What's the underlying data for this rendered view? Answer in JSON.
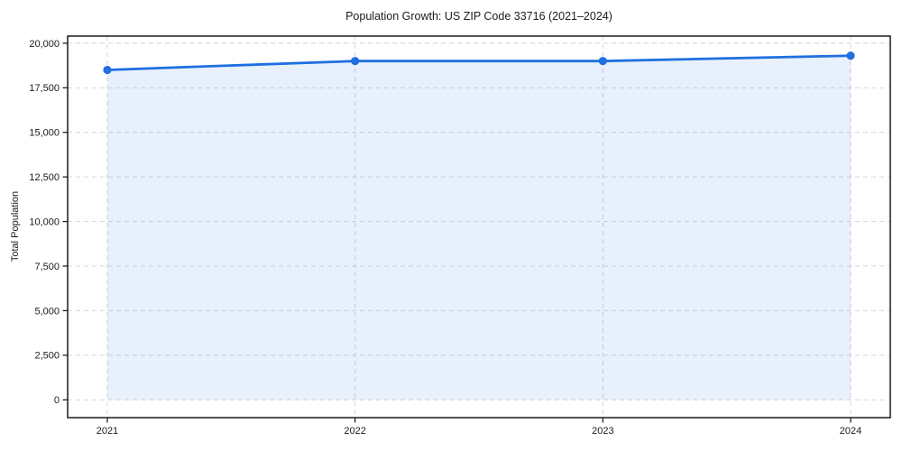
{
  "figure": {
    "background": "#ffffff"
  },
  "chart_data": {
    "type": "line",
    "title": "Population Growth: US ZIP Code 33716 (2021–2024)",
    "xlabel": "",
    "ylabel": "Total Population",
    "x": [
      2021,
      2022,
      2023,
      2024
    ],
    "series": [
      {
        "name": "Total Population",
        "values": [
          18500,
          19000,
          19000,
          19300
        ]
      }
    ],
    "area_fill_to_zero": true,
    "markers": true,
    "legend": "none",
    "grid": "dashed, both axes",
    "xticks": {
      "values": [
        2021,
        2022,
        2023,
        2024
      ],
      "labels": [
        "2021",
        "2022",
        "2023",
        "2024"
      ]
    },
    "yticks": {
      "values": [
        0,
        2500,
        5000,
        7500,
        10000,
        12500,
        15000,
        17500,
        20000
      ],
      "labels": [
        "0",
        "2,500",
        "5,000",
        "7,500",
        "10,000",
        "12,500",
        "15,000",
        "17,500",
        "20,000"
      ]
    },
    "xlim": [
      2020.84,
      2024.16
    ],
    "ylim": [
      -1000,
      20400
    ],
    "colors": {
      "line": "#1f6fe0",
      "marker": "#1f6fe0",
      "fill": "rgba(31,111,224,0.10)",
      "grid": "#d6d6d6",
      "spine": "#1a1a1a",
      "tick": "#1a1a1a",
      "text": "#1a1a1a"
    }
  }
}
